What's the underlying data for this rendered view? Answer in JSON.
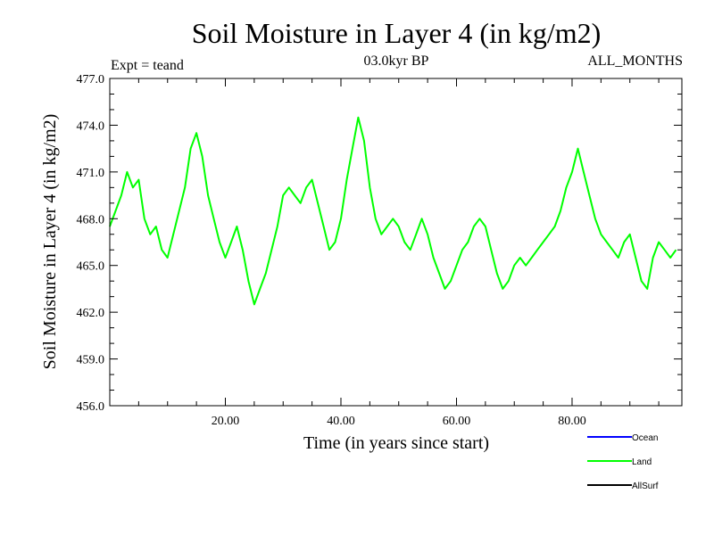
{
  "chart_data": {
    "type": "line",
    "title": "Soil Moisture in Layer 4 (in kg/m2)",
    "subtitle": "03.0kyr BP",
    "left_annotation": "Expt = teand",
    "right_annotation": "ALL_MONTHS",
    "xlabel": "Time (in years since start)",
    "ylabel": "Soil Moisture in Layer 4 (in kg/m2)",
    "xlim": [
      0,
      99
    ],
    "ylim": [
      456,
      477
    ],
    "x_ticks": [
      20,
      40,
      60,
      80
    ],
    "x_tick_labels": [
      "20.00",
      "40.00",
      "60.00",
      "80.00"
    ],
    "y_ticks": [
      456,
      459,
      462,
      465,
      468,
      471,
      474,
      477
    ],
    "y_tick_labels": [
      "456.0",
      "459.0",
      "462.0",
      "465.0",
      "468.0",
      "471.0",
      "474.0",
      "477.0"
    ],
    "legend": [
      {
        "name": "Ocean",
        "color": "#0000ff"
      },
      {
        "name": "Land",
        "color": "#00ff00"
      },
      {
        "name": "AllSurf",
        "color": "#000000"
      }
    ],
    "series": [
      {
        "name": "Land",
        "color": "#00ff00",
        "step": 1,
        "x_start": 0,
        "values": [
          467.5,
          468.5,
          469.5,
          471.0,
          470.0,
          470.5,
          468.0,
          467.0,
          467.5,
          466.0,
          465.5,
          467.0,
          468.5,
          470.0,
          472.5,
          473.5,
          472.0,
          469.5,
          468.0,
          466.5,
          465.5,
          466.5,
          467.5,
          466.0,
          464.0,
          462.5,
          463.5,
          464.5,
          466.0,
          467.5,
          469.5,
          470.0,
          469.5,
          469.0,
          470.0,
          470.5,
          469.0,
          467.5,
          466.0,
          466.5,
          468.0,
          470.5,
          472.5,
          474.5,
          473.0,
          470.0,
          468.0,
          467.0,
          467.5,
          468.0,
          467.5,
          466.5,
          466.0,
          467.0,
          468.0,
          467.0,
          465.5,
          464.5,
          463.5,
          464.0,
          465.0,
          466.0,
          466.5,
          467.5,
          468.0,
          467.5,
          466.0,
          464.5,
          463.5,
          464.0,
          465.0,
          465.5,
          465.0,
          465.5,
          466.0,
          466.5,
          467.0,
          467.5,
          468.5,
          470.0,
          471.0,
          472.5,
          471.0,
          469.5,
          468.0,
          467.0,
          466.5,
          466.0,
          465.5,
          466.5,
          467.0,
          465.5,
          464.0,
          463.5,
          465.5,
          466.5,
          466.0,
          465.5,
          466.0
        ]
      }
    ]
  }
}
